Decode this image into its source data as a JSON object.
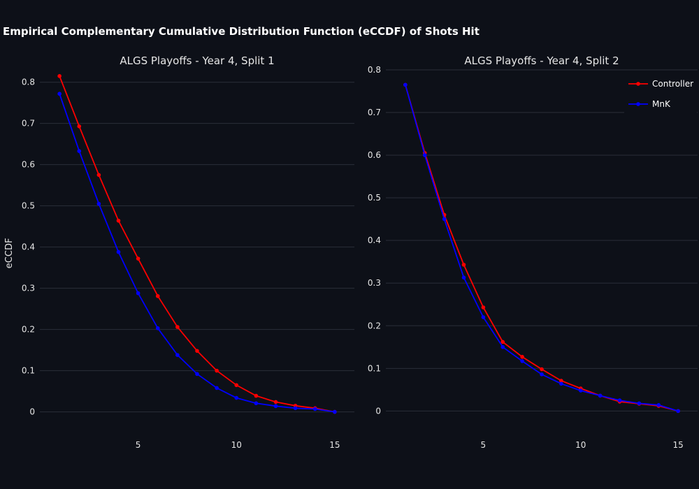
{
  "title": "Empirical Complementary Cumulative Distribution Function (eCCDF) of Shots Hit",
  "colors": {
    "background": "#0d1018",
    "grid": "#2a2e38",
    "text": "#e6e6e6"
  },
  "chart_data": [
    {
      "type": "line",
      "title": "ALGS Playoffs - Year 4, Split 1",
      "xlabel": "",
      "ylabel": "eCCDF",
      "xlim": [
        0,
        16
      ],
      "ylim": [
        -0.06,
        0.83
      ],
      "x_ticks": [
        5,
        10,
        15
      ],
      "y_ticks": [
        0,
        0.1,
        0.2,
        0.3,
        0.4,
        0.5,
        0.6,
        0.7,
        0.8
      ],
      "grid": true,
      "x": [
        1,
        2,
        3,
        4,
        5,
        6,
        7,
        8,
        9,
        10,
        11,
        12,
        13,
        14,
        15
      ],
      "series": [
        {
          "name": "Controller",
          "color": "#ff0000",
          "values": [
            0.815,
            0.693,
            0.575,
            0.464,
            0.372,
            0.281,
            0.206,
            0.148,
            0.1,
            0.065,
            0.039,
            0.024,
            0.015,
            0.009,
            0.0
          ]
        },
        {
          "name": "MnK",
          "color": "#0000ff",
          "values": [
            0.772,
            0.633,
            0.505,
            0.388,
            0.288,
            0.203,
            0.138,
            0.092,
            0.058,
            0.034,
            0.021,
            0.014,
            0.009,
            0.007,
            0.0
          ]
        }
      ]
    },
    {
      "type": "line",
      "title": "ALGS Playoffs - Year 4, Split 2",
      "xlabel": "",
      "ylabel": "",
      "xlim": [
        0,
        16
      ],
      "ylim": [
        -0.06,
        0.8
      ],
      "x_ticks": [
        5,
        10,
        15
      ],
      "y_ticks": [
        0,
        0.1,
        0.2,
        0.3,
        0.4,
        0.5,
        0.6,
        0.7,
        0.8
      ],
      "grid": true,
      "legend": "top-right",
      "x": [
        1,
        2,
        3,
        4,
        5,
        6,
        7,
        8,
        9,
        10,
        11,
        12,
        13,
        14,
        15
      ],
      "series": [
        {
          "name": "Controller",
          "color": "#ff0000",
          "values": [
            0.765,
            0.605,
            0.46,
            0.343,
            0.243,
            0.162,
            0.127,
            0.098,
            0.071,
            0.053,
            0.036,
            0.022,
            0.017,
            0.012,
            0.0
          ]
        },
        {
          "name": "MnK",
          "color": "#0000ff",
          "values": [
            0.765,
            0.6,
            0.45,
            0.313,
            0.22,
            0.15,
            0.117,
            0.086,
            0.064,
            0.048,
            0.036,
            0.025,
            0.018,
            0.014,
            0.0
          ]
        }
      ]
    }
  ]
}
